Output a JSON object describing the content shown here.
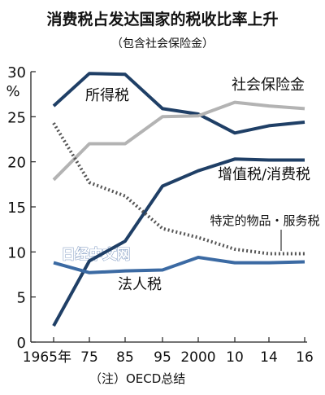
{
  "chart_data": {
    "type": "line",
    "title": "消费税占发达国家的税收比率上升",
    "subtitle": "（包含社会保险金）",
    "ylabel": "%",
    "ylim": [
      0,
      30
    ],
    "yticks": [
      0,
      5,
      10,
      15,
      20,
      25,
      30
    ],
    "x": [
      1965,
      1975,
      1985,
      1995,
      2000,
      2010,
      2014,
      2016
    ],
    "x_tick_labels": [
      "1965年",
      "75",
      "85",
      "95",
      "2000",
      "10",
      "14",
      "16"
    ],
    "grid": false,
    "series": [
      {
        "name": "所得税",
        "color": "#1f3f66",
        "dash": "solid",
        "values": [
          26.2,
          29.8,
          29.7,
          25.9,
          25.3,
          23.2,
          24.0,
          24.4
        ]
      },
      {
        "name": "社会保险金",
        "color": "#b3b3b3",
        "dash": "solid",
        "values": [
          18.0,
          22.0,
          22.0,
          25.0,
          25.1,
          26.6,
          26.2,
          25.9
        ]
      },
      {
        "name": "增值税/消费税",
        "color": "#1f3f66",
        "dash": "solid",
        "values": [
          1.8,
          9.0,
          11.2,
          17.3,
          19.0,
          20.3,
          20.2,
          20.2
        ]
      },
      {
        "name": "特定的物品・服务税",
        "color": "#555555",
        "dash": "dotted",
        "values": [
          24.3,
          17.7,
          16.2,
          12.6,
          11.6,
          10.3,
          9.8,
          9.8
        ]
      },
      {
        "name": "法人税",
        "color": "#3b6aa3",
        "dash": "solid",
        "values": [
          8.8,
          7.7,
          7.9,
          8.0,
          9.4,
          8.8,
          8.8,
          8.9
        ]
      }
    ],
    "note": "（注）OECD总结",
    "watermark": "日经中文网"
  }
}
